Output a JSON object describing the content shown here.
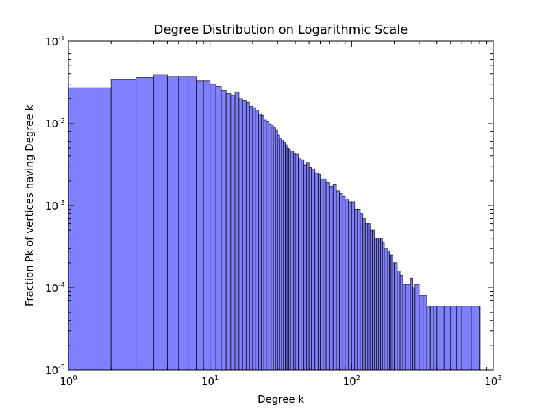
{
  "chart_data": {
    "type": "bar",
    "title": "Degree Distribution on Logarithmic Scale",
    "xlabel": "Degree k",
    "ylabel": "Fraction Pk of vertices having Degree k",
    "xscale": "log",
    "yscale": "log",
    "xlim": [
      1,
      1000
    ],
    "ylim": [
      1e-05,
      0.1
    ],
    "grid": false,
    "legend": "none",
    "colors": {
      "bar_fill": "#8080ff",
      "bar_edge": "#000000",
      "axis": "#000000"
    },
    "x_ticks": [
      {
        "base": "10",
        "exp": "0"
      },
      {
        "base": "10",
        "exp": "1"
      },
      {
        "base": "10",
        "exp": "2"
      },
      {
        "base": "10",
        "exp": "3"
      }
    ],
    "y_ticks": [
      {
        "base": "10",
        "exp": "-5"
      },
      {
        "base": "10",
        "exp": "-4"
      },
      {
        "base": "10",
        "exp": "-3"
      },
      {
        "base": "10",
        "exp": "-2"
      },
      {
        "base": "10",
        "exp": "-1"
      }
    ],
    "x": [
      1,
      2,
      3,
      4,
      5,
      6,
      7,
      8,
      9,
      10,
      11,
      12,
      13,
      14,
      15,
      16,
      17,
      18,
      19,
      20,
      21,
      22,
      23,
      24,
      25,
      26,
      27,
      28,
      29,
      30,
      31,
      32,
      33,
      34,
      35,
      36,
      37,
      38,
      39,
      40,
      42,
      44,
      46,
      48,
      50,
      52,
      55,
      58,
      60,
      63,
      66,
      70,
      74,
      78,
      82,
      86,
      90,
      95,
      100,
      105,
      110,
      115,
      120,
      125,
      130,
      135,
      140,
      145,
      150,
      155,
      160,
      165,
      170,
      175,
      180,
      185,
      190,
      195,
      200,
      210,
      220,
      230,
      240,
      250,
      260,
      270,
      280,
      300,
      320,
      340,
      360,
      380,
      400,
      450,
      500,
      550,
      600,
      700,
      800
    ],
    "values": [
      0.027,
      0.034,
      0.036,
      0.039,
      0.037,
      0.037,
      0.037,
      0.033,
      0.033,
      0.03,
      0.028,
      0.025,
      0.023,
      0.022,
      0.024,
      0.02,
      0.019,
      0.018,
      0.016,
      0.0155,
      0.0145,
      0.013,
      0.0125,
      0.011,
      0.0105,
      0.0098,
      0.0095,
      0.0088,
      0.0082,
      0.0072,
      0.0066,
      0.0062,
      0.0058,
      0.0055,
      0.005,
      0.0048,
      0.0046,
      0.0045,
      0.0043,
      0.0042,
      0.0038,
      0.0036,
      0.0031,
      0.0033,
      0.0029,
      0.0028,
      0.0025,
      0.0024,
      0.0021,
      0.0021,
      0.0019,
      0.0017,
      0.0018,
      0.0015,
      0.0014,
      0.0013,
      0.0012,
      0.0011,
      0.0011,
      0.0009,
      0.0009,
      0.0008,
      0.0007,
      0.0006,
      0.0006,
      0.0005,
      0.0005,
      0.0004,
      0.0004,
      0.0004,
      0.0004,
      0.00035,
      0.0003,
      0.0003,
      0.00028,
      0.00025,
      0.00025,
      0.0002,
      0.0002,
      0.00016,
      0.00014,
      0.00011,
      0.00011,
      0.00011,
      0.00013,
      0.0001,
      0.00011,
      8e-05,
      8e-05,
      6e-05,
      6e-05,
      6e-05,
      6e-05,
      6e-05,
      6e-05,
      6e-05,
      6e-05,
      6e-05,
      6e-05
    ]
  }
}
